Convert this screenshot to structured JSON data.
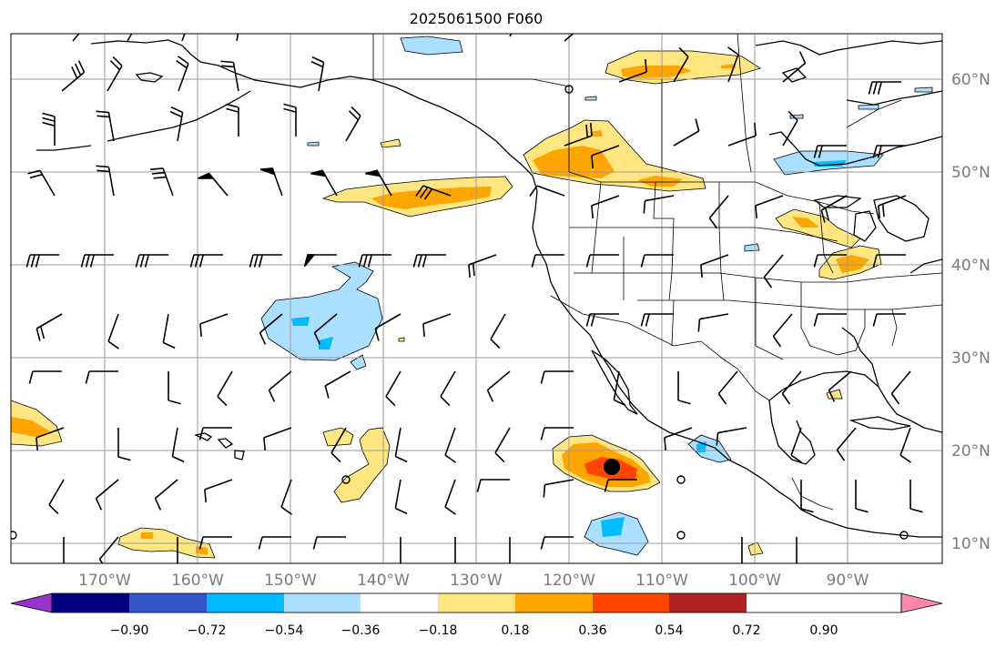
{
  "title": "2025061500 F060",
  "lon_labels": [
    "170°W",
    "160°W",
    "150°W",
    "140°W",
    "130°W",
    "120°W",
    "110°W",
    "100°W",
    "90°W"
  ],
  "lat_labels": [
    "60°N",
    "50°N",
    "40°N",
    "30°N",
    "20°N",
    "10°N"
  ],
  "colorbar": {
    "ticks": [
      "−0.90",
      "−0.72",
      "−0.54",
      "−0.36",
      "−0.18",
      "0.18",
      "0.36",
      "0.54",
      "0.72",
      "0.90"
    ],
    "colors": [
      "#9933cc",
      "#000080",
      "#3355cc",
      "#00bbff",
      "#aadfff",
      "#ffffff",
      "#ffe680",
      "#ffa500",
      "#ff4500",
      "#b22222",
      "#ff88aa"
    ]
  },
  "map": {
    "lon_range": [
      -180,
      -80
    ],
    "lat_range": [
      8,
      65
    ],
    "projection": "equirectangular",
    "features": [
      "coastlines",
      "country borders",
      "US state borders",
      "lat/lon grid",
      "wind barbs"
    ],
    "markers": [
      {
        "type": "large filled dot",
        "lon": -115.8,
        "lat": 18.3
      }
    ]
  }
}
